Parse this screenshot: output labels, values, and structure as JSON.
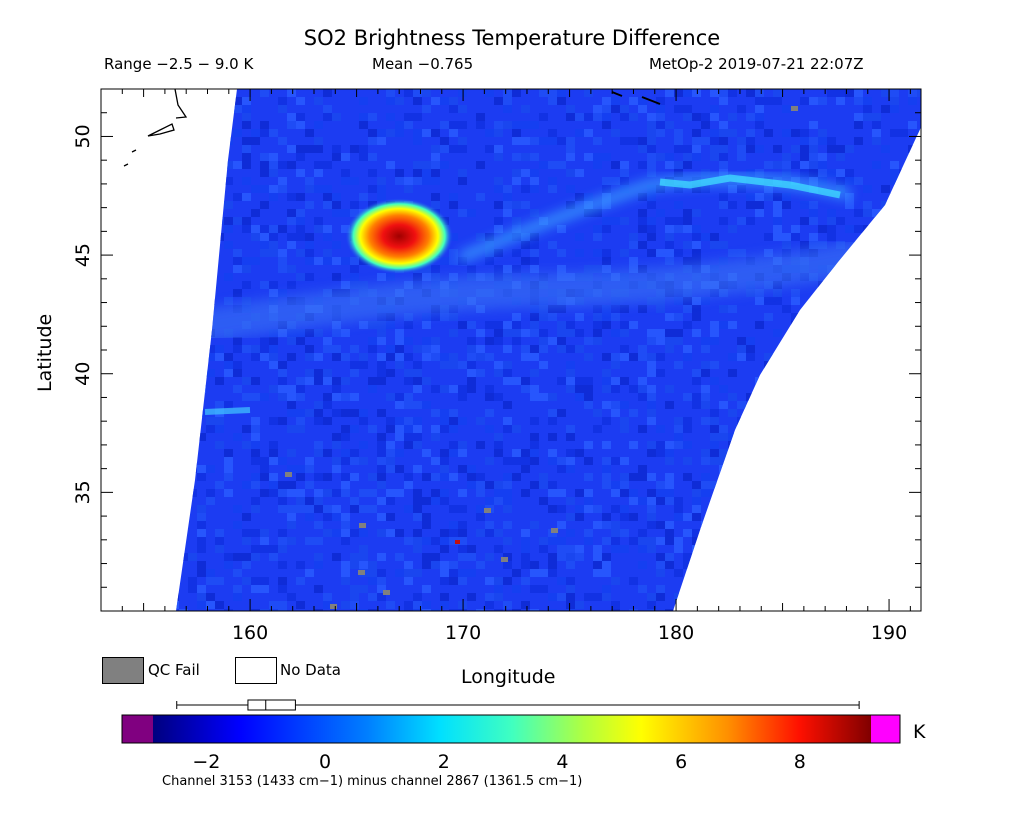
{
  "chart_data": {
    "type": "heatmap",
    "title": "SO2 Brightness Temperature Difference",
    "range_text": "Range −2.5 − 9.0 K",
    "mean_text": "Mean −0.765",
    "satellite_text": "MetOp-2 2019-07-21 22:07Z",
    "xlabel": "Longitude",
    "ylabel": "Latitude",
    "xlim": [
      153,
      191.5
    ],
    "ylim": [
      30,
      52
    ],
    "xticks": [
      160,
      170,
      180,
      190
    ],
    "yticks": [
      35,
      40,
      45,
      50
    ],
    "plume_center": {
      "lon": 167,
      "lat": 45.8,
      "peak_k": 9.0
    },
    "colorbar": {
      "min": -2.9,
      "max": 9.2,
      "ticks": [
        -2,
        0,
        2,
        4,
        6,
        8
      ],
      "unit": "K",
      "box_stats": {
        "min": -2.5,
        "q1": -1.3,
        "median": -1.0,
        "q3": -0.5,
        "max": 9.0
      }
    },
    "legend": {
      "qc_fail": "QC Fail",
      "no_data": "No Data"
    },
    "footnote": "Channel 3153 (1433 cm−1) minus channel 2867 (1361.5 cm−1)"
  },
  "colors": {
    "background_field": "#1c3cf2",
    "qc_fail": "#808080",
    "no_data": "#ffffff",
    "colorbar_low_extend": "#800080",
    "colorbar_high_extend": "#ff00ff"
  }
}
